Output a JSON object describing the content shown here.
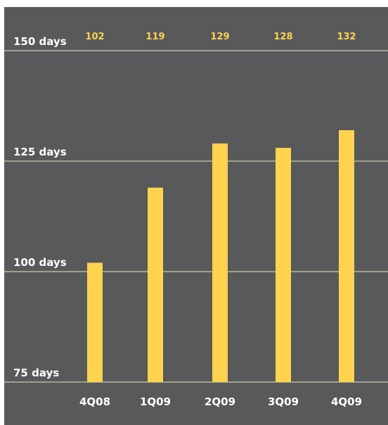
{
  "chart_data": {
    "type": "bar",
    "categories": [
      "4Q08",
      "1Q09",
      "2Q09",
      "3Q09",
      "4Q09"
    ],
    "values": [
      102,
      119,
      129,
      128,
      132
    ],
    "value_labels": [
      "102",
      "119",
      "129",
      "128",
      "132"
    ],
    "yticks": [
      {
        "value": 75,
        "label": "75 days"
      },
      {
        "value": 100,
        "label": "100 days"
      },
      {
        "value": 125,
        "label": "125 days"
      },
      {
        "value": 150,
        "label": "150 days"
      }
    ],
    "ylim": [
      75,
      150
    ],
    "grid": true,
    "title": "",
    "xlabel": "",
    "ylabel": ""
  },
  "colors": {
    "background": "#58595b",
    "bar": "#ffd34d",
    "value_label": "#ffd34d",
    "gridline": "#c9cba3",
    "text": "#ffffff"
  }
}
